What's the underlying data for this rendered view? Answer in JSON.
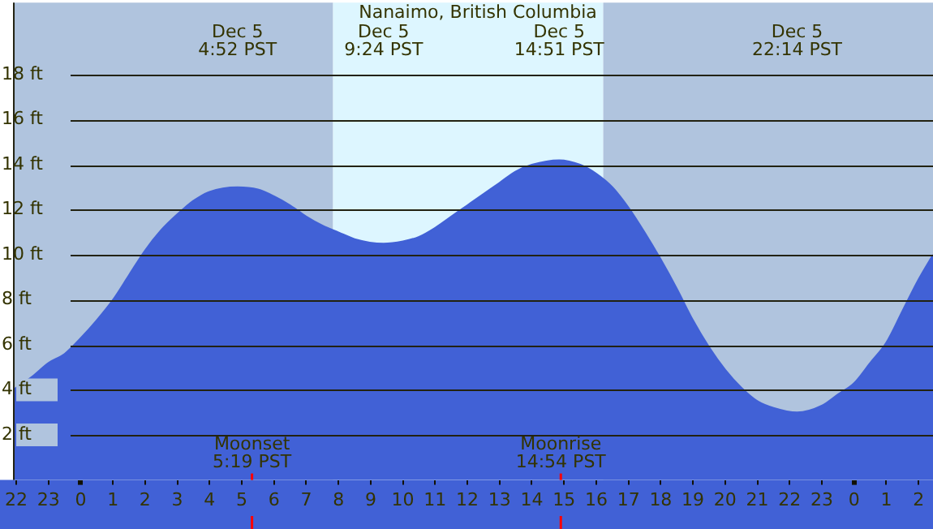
{
  "chart_data": {
    "type": "area",
    "title": "Nanaimo, British Columbia",
    "x": [
      "--12-04T21:54",
      "--12-04T22:30",
      "--12-04T23:00",
      "--12-04T23:30",
      "--12-05T00:00",
      "--12-05T00:30",
      "--12-05T01:00",
      "--12-05T01:30",
      "--12-05T02:00",
      "--12-05T02:30",
      "--12-05T03:00",
      "--12-05T03:30",
      "--12-05T04:00",
      "--12-05T04:52",
      "--12-05T05:30",
      "--12-05T06:00",
      "--12-05T06:30",
      "--12-05T07:00",
      "--12-05T07:30",
      "--12-05T08:00",
      "--12-05T08:30",
      "--12-05T09:24",
      "--12-05T10:00",
      "--12-05T10:30",
      "--12-05T11:00",
      "--12-05T11:30",
      "--12-05T12:00",
      "--12-05T12:30",
      "--12-05T13:00",
      "--12-05T13:30",
      "--12-05T14:00",
      "--12-05T14:51",
      "--12-05T15:30",
      "--12-05T16:00",
      "--12-05T16:30",
      "--12-05T17:00",
      "--12-05T17:30",
      "--12-05T18:00",
      "--12-05T18:30",
      "--12-05T19:00",
      "--12-05T19:30",
      "--12-05T20:00",
      "--12-05T20:30",
      "--12-05T21:00",
      "--12-05T21:30",
      "--12-05T22:14",
      "--12-05T23:00",
      "--12-05T23:30",
      "--12-06T00:00",
      "--12-06T00:30",
      "--12-06T01:00",
      "--12-06T01:30",
      "--12-06T02:00",
      "--12-06T02:27"
    ],
    "series": [
      {
        "color": "#4161d6",
        "values": [
          4.0,
          4.6,
          5.2,
          5.6,
          6.3,
          7.1,
          8.0,
          9.1,
          10.2,
          11.1,
          11.8,
          12.4,
          12.8,
          13.0,
          12.9,
          12.6,
          12.2,
          11.7,
          11.3,
          11.0,
          10.7,
          10.5,
          10.6,
          10.8,
          11.2,
          11.7,
          12.2,
          12.7,
          13.2,
          13.7,
          14.0,
          14.2,
          14.0,
          13.6,
          13.0,
          12.1,
          11.0,
          9.8,
          8.5,
          7.1,
          5.9,
          4.9,
          4.1,
          3.5,
          3.2,
          3.0,
          3.3,
          3.8,
          4.3,
          5.2,
          6.1,
          7.5,
          8.9,
          10.0
        ]
      }
    ],
    "xlim": [
      "--12-04T21:54",
      "--12-06T02:27"
    ],
    "xticks": [
      {
        "value": "--12-04T22:00",
        "label": "22"
      },
      {
        "value": "--12-04T23:00",
        "label": "23"
      },
      {
        "value": "--12-05T00:00",
        "label": "0"
      },
      {
        "value": "--12-05T01:00",
        "label": "1"
      },
      {
        "value": "--12-05T02:00",
        "label": "2"
      },
      {
        "value": "--12-05T03:00",
        "label": "3"
      },
      {
        "value": "--12-05T04:00",
        "label": "4"
      },
      {
        "value": "--12-05T05:00",
        "label": "5"
      },
      {
        "value": "--12-05T06:00",
        "label": "6"
      },
      {
        "value": "--12-05T07:00",
        "label": "7"
      },
      {
        "value": "--12-05T08:00",
        "label": "8"
      },
      {
        "value": "--12-05T09:00",
        "label": "9"
      },
      {
        "value": "--12-05T10:00",
        "label": "10"
      },
      {
        "value": "--12-05T11:00",
        "label": "11"
      },
      {
        "value": "--12-05T12:00",
        "label": "12"
      },
      {
        "value": "--12-05T13:00",
        "label": "13"
      },
      {
        "value": "--12-05T14:00",
        "label": "14"
      },
      {
        "value": "--12-05T15:00",
        "label": "15"
      },
      {
        "value": "--12-05T16:00",
        "label": "16"
      },
      {
        "value": "--12-05T17:00",
        "label": "17"
      },
      {
        "value": "--12-05T18:00",
        "label": "18"
      },
      {
        "value": "--12-05T19:00",
        "label": "19"
      },
      {
        "value": "--12-05T20:00",
        "label": "20"
      },
      {
        "value": "--12-05T21:00",
        "label": "21"
      },
      {
        "value": "--12-05T22:00",
        "label": "22"
      },
      {
        "value": "--12-05T23:00",
        "label": "23"
      },
      {
        "value": "--12-06T00:00",
        "label": "0"
      },
      {
        "value": "--12-06T01:00",
        "label": "1"
      },
      {
        "value": "--12-06T02:00",
        "label": "2"
      }
    ],
    "ylim": [
      0,
      21.2
    ],
    "yticks": [
      {
        "value": 2,
        "label": "2 ft"
      },
      {
        "value": 4,
        "label": "4 ft"
      },
      {
        "value": 6,
        "label": "6 ft"
      },
      {
        "value": 8,
        "label": "8 ft"
      },
      {
        "value": 10,
        "label": "10 ft"
      },
      {
        "value": 12,
        "label": "12 ft"
      },
      {
        "value": 14,
        "label": "14 ft"
      },
      {
        "value": 16,
        "label": "16 ft"
      },
      {
        "value": 18,
        "label": "18 ft"
      }
    ],
    "grid": "y",
    "legend": false,
    "marker": "none",
    "bands": [
      {
        "axis": "x",
        "from": "--12-04T21:54",
        "to": "--12-05T07:50",
        "color": "#b0c4de"
      },
      {
        "axis": "x",
        "from": "--12-05T07:50",
        "to": "--12-05T16:13",
        "color": "#ddf6ff"
      },
      {
        "axis": "x",
        "from": "--12-05T16:13",
        "to": "--12-06T02:27",
        "color": "#b0c4de"
      }
    ],
    "ref_lines": [
      {
        "axis": "x",
        "value": "--12-05T05:19",
        "label": "Moonset\n5:19 PST",
        "color": "#ff0000"
      },
      {
        "axis": "x",
        "value": "--12-05T14:54",
        "label": "Moonrise\n14:54 PST",
        "color": "#ff0000"
      }
    ],
    "annotations": [
      "Dec 5\n4:52 PST",
      "Dec 5\n9:24 PST",
      "Dec 5\n14:51 PST",
      "Dec 5\n22:14 PST"
    ]
  }
}
